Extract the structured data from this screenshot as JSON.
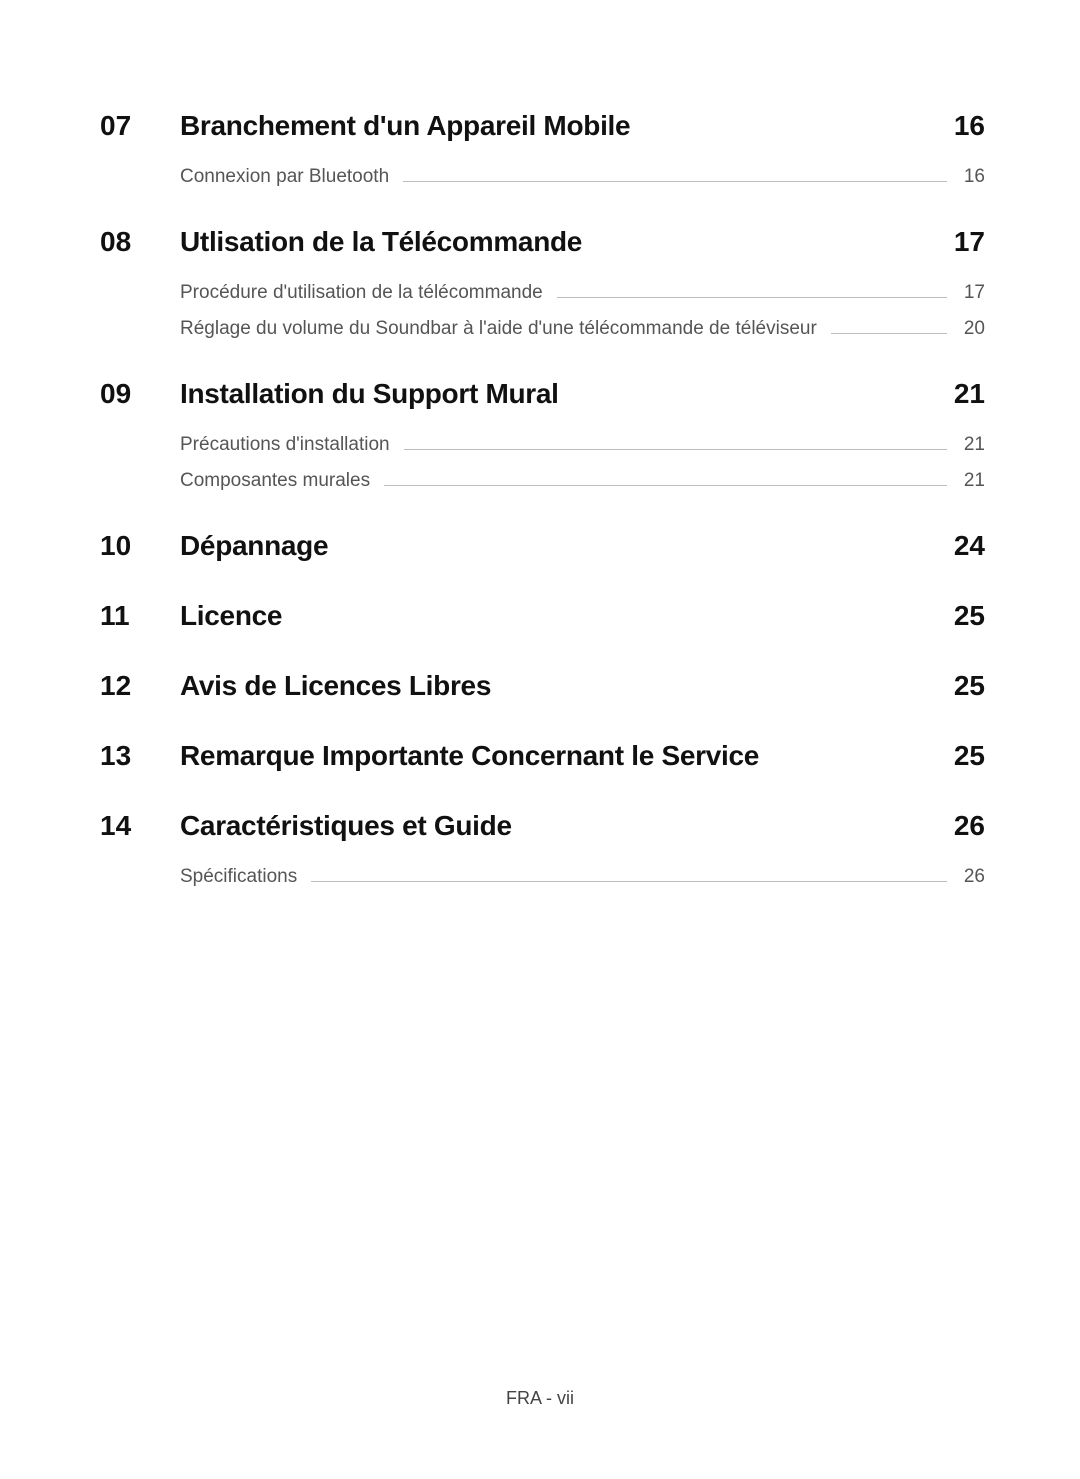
{
  "footer": "FRA - vii",
  "text_colors": {
    "heading": "#111111",
    "sub": "#555555",
    "line": "#bdbdbd"
  },
  "font_sizes": {
    "heading": 28,
    "sub": 19,
    "footer": 18
  },
  "sections": [
    {
      "num": "07",
      "title": "Branchement d'un Appareil Mobile",
      "page": "16",
      "subs": [
        {
          "label": "Connexion par Bluetooth",
          "page": "16"
        }
      ]
    },
    {
      "num": "08",
      "title": "Utlisation de la Télécommande",
      "page": "17",
      "subs": [
        {
          "label": "Procédure d'utilisation de la télécommande",
          "page": "17"
        },
        {
          "label": "Réglage du volume du Soundbar à l'aide d'une télécommande de téléviseur",
          "page": "20"
        }
      ]
    },
    {
      "num": "09",
      "title": "Installation du Support Mural",
      "page": "21",
      "subs": [
        {
          "label": "Précautions d'installation",
          "page": "21"
        },
        {
          "label": "Composantes murales",
          "page": "21"
        }
      ]
    },
    {
      "num": "10",
      "title": "Dépannage",
      "page": "24",
      "subs": []
    },
    {
      "num": "11",
      "title": "Licence",
      "page": "25",
      "subs": []
    },
    {
      "num": "12",
      "title": "Avis de Licences Libres",
      "page": "25",
      "subs": []
    },
    {
      "num": "13",
      "title": "Remarque Importante Concernant le Service",
      "page": "25",
      "subs": []
    },
    {
      "num": "14",
      "title": "Caractéristiques et Guide",
      "page": "26",
      "subs": [
        {
          "label": "Spécifications",
          "page": "26"
        }
      ]
    }
  ]
}
